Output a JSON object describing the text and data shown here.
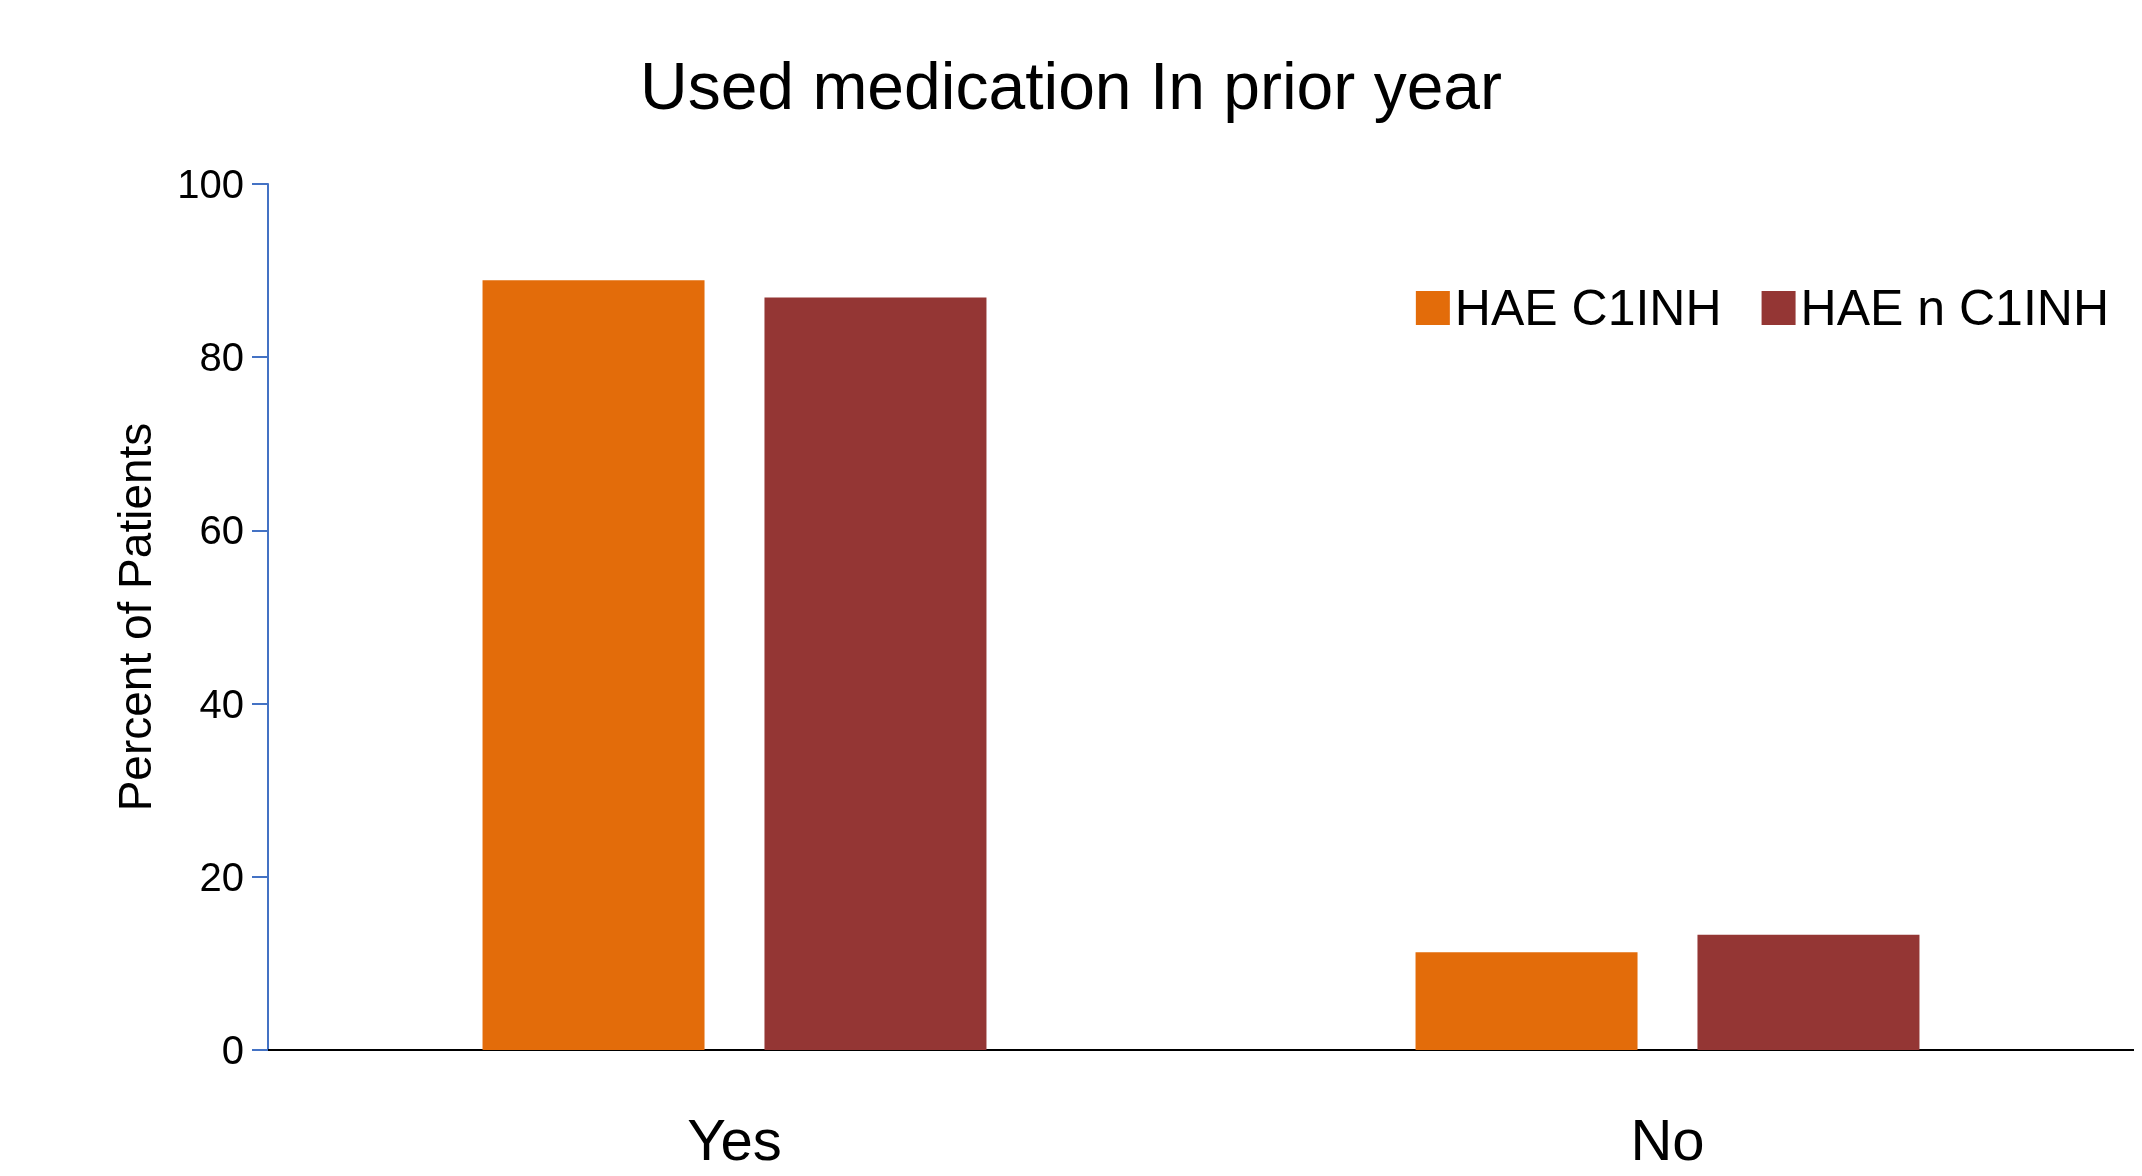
{
  "chart_data": {
    "type": "bar",
    "title": "Used medication In prior year",
    "ylabel": "Percent of Patients",
    "categories": [
      "Yes",
      "No"
    ],
    "series": [
      {
        "name": "HAE C1INH",
        "color": "#e36c0a",
        "values": [
          88.9,
          11.3
        ]
      },
      {
        "name": "HAE n C1INH",
        "color": "#943634",
        "values": [
          86.9,
          13.3
        ]
      }
    ],
    "ylim": [
      0,
      100
    ],
    "yticks": [
      0,
      20,
      40,
      60,
      80,
      100
    ],
    "grid": false,
    "legend": "top right"
  }
}
